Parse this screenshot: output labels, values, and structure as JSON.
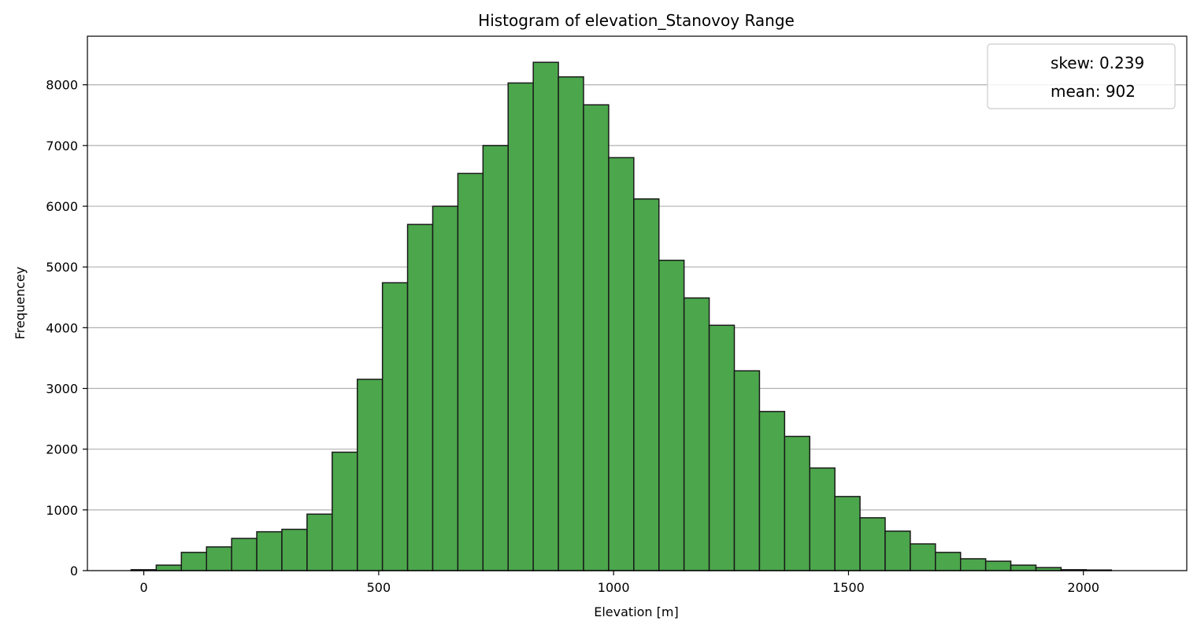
{
  "chart_data": {
    "type": "bar",
    "title": "Histogram of elevation_Stanovoy Range",
    "xlabel": "Elevation [m]",
    "ylabel": "Frequencey",
    "xlim": [
      -120,
      2220
    ],
    "ylim": [
      0,
      8800
    ],
    "xticks": [
      0,
      500,
      1000,
      1500,
      2000
    ],
    "yticks": [
      0,
      1000,
      2000,
      3000,
      4000,
      5000,
      6000,
      7000,
      8000
    ],
    "bin_start": -27,
    "bin_width": 53.5,
    "values": [
      15,
      90,
      300,
      390,
      530,
      640,
      680,
      930,
      1950,
      3150,
      4740,
      5700,
      6000,
      6540,
      7000,
      8030,
      8370,
      8130,
      7670,
      6800,
      6120,
      5110,
      4490,
      4040,
      3290,
      2620,
      2210,
      1690,
      1220,
      870,
      650,
      440,
      300,
      195,
      155,
      90,
      50,
      15,
      10
    ],
    "bar_color": "#4ca64c",
    "edge_color": "#1a1a1a",
    "grid": "horizontal",
    "legend_position": "top-right",
    "legend": [
      "skew: 0.239",
      "mean: 902"
    ]
  }
}
